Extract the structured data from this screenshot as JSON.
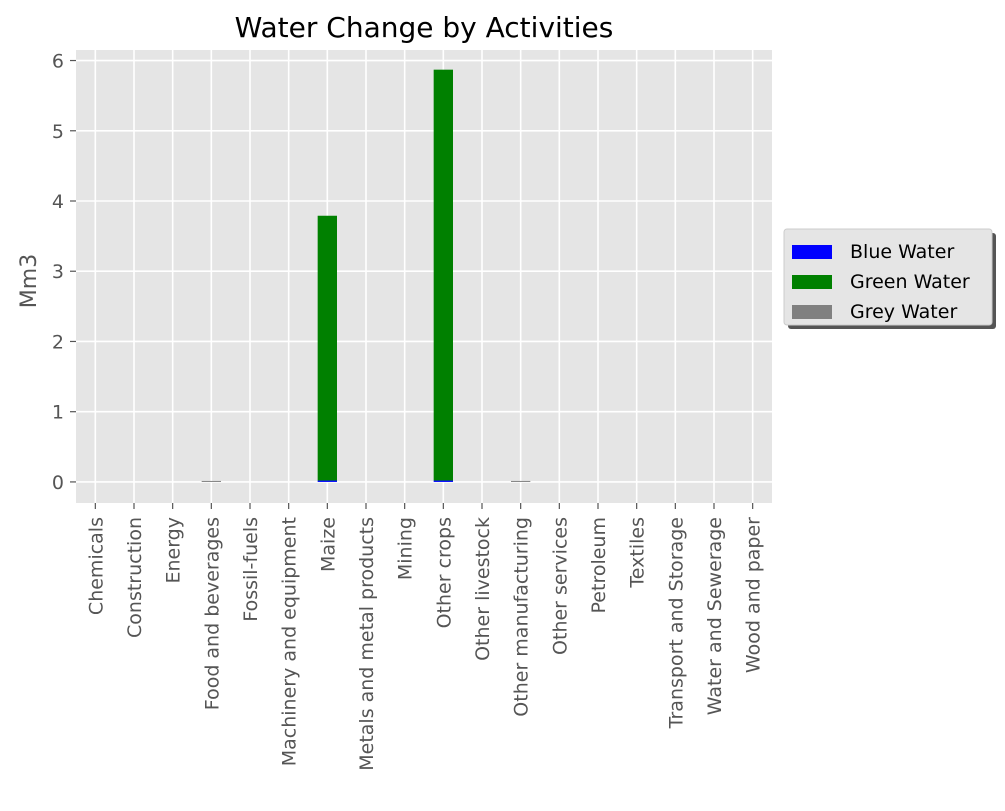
{
  "chart_data": {
    "type": "bar",
    "stacked": true,
    "title": "Water Change by Activities",
    "xlabel": "",
    "ylabel": "Mm3",
    "ylim": [
      -0.3,
      6.15
    ],
    "yticks": [
      0,
      1,
      2,
      3,
      4,
      5,
      6
    ],
    "grid": true,
    "legend_position": "right",
    "background": "#e5e5e5",
    "categories": [
      "Chemicals",
      "Construction",
      "Energy",
      "Food and beverages",
      "Fossil-fuels",
      "Machinery and equipment",
      "Maize",
      "Metals and metal products",
      "Mining",
      "Other crops",
      "Other livestock",
      "Other manufacturing",
      "Other services",
      "Petroleum",
      "Textiles",
      "Transport and Storage",
      "Water and Sewerage",
      "Wood and paper"
    ],
    "series": [
      {
        "name": "Blue Water",
        "color": "#0000ff",
        "values": [
          0,
          0,
          0,
          0,
          0,
          0,
          0.02,
          0,
          0,
          0.02,
          0,
          0,
          0,
          0,
          0,
          0,
          0,
          0
        ]
      },
      {
        "name": "Green Water",
        "color": "#008000",
        "values": [
          0,
          0,
          0,
          0,
          0,
          0,
          3.77,
          0,
          0,
          5.85,
          0,
          0,
          0,
          0,
          0,
          0,
          0,
          0
        ]
      },
      {
        "name": "Grey Water",
        "color": "#808080",
        "values": [
          0,
          0,
          0,
          0.01,
          0,
          0,
          0,
          0,
          0,
          0,
          0,
          0.01,
          0,
          0,
          0,
          0,
          0,
          0
        ]
      }
    ]
  }
}
